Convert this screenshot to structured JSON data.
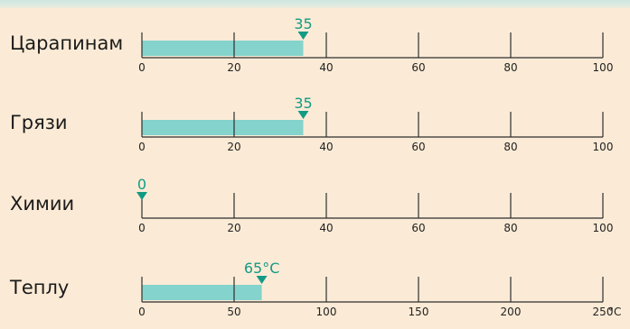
{
  "chart_data": [
    {
      "type": "bar",
      "category": "Царапинам",
      "value": 35,
      "value_label": "35",
      "ticks": [
        "0",
        "20",
        "40",
        "60",
        "80",
        "100"
      ],
      "xlim": [
        0,
        100
      ],
      "unit": ""
    },
    {
      "type": "bar",
      "category": "Грязи",
      "value": 35,
      "value_label": "35",
      "ticks": [
        "0",
        "20",
        "40",
        "60",
        "80",
        "100"
      ],
      "xlim": [
        0,
        100
      ],
      "unit": ""
    },
    {
      "type": "bar",
      "category": "Химии",
      "value": 0,
      "value_label": "0",
      "ticks": [
        "0",
        "20",
        "40",
        "60",
        "80",
        "100"
      ],
      "xlim": [
        0,
        100
      ],
      "unit": ""
    },
    {
      "type": "bar",
      "category": "Теплу",
      "value": 65,
      "value_label": "65°C",
      "ticks": [
        "0",
        "50",
        "100",
        "150",
        "200",
        "250"
      ],
      "xlim": [
        0,
        250
      ],
      "unit": "°C"
    }
  ],
  "colors": {
    "background": "#fbebd6",
    "bar": "#84d3cc",
    "marker": "#139a84",
    "axis": "#2e2e2e"
  }
}
